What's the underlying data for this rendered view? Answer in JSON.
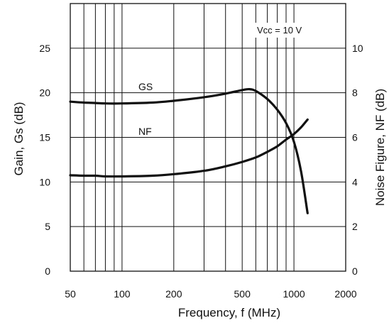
{
  "chart_data": {
    "type": "line",
    "title": "",
    "xlabel": "Frequency, f (MHz)",
    "ylabel": "Gain, Gs (dB)",
    "y2label": "Noise Figure, NF (dB)",
    "xscale": "log",
    "xlim": [
      50,
      2000
    ],
    "ylim": [
      0,
      30
    ],
    "y2lim": [
      0,
      12
    ],
    "grid": true,
    "legend": "none",
    "x_ticks": [
      50,
      100,
      200,
      500,
      1000,
      2000
    ],
    "x_tick_labels": [
      "50",
      "100",
      "200",
      "500",
      "1000",
      "2000"
    ],
    "x_minor_ticks": [
      60,
      70,
      80,
      90,
      300,
      400,
      600,
      700,
      800,
      900
    ],
    "y_ticks": [
      0,
      5,
      10,
      15,
      20,
      25
    ],
    "y_tick_labels": [
      "0",
      "5",
      "10",
      "15",
      "20",
      "25"
    ],
    "y2_ticks": [
      0,
      2,
      4,
      6,
      8,
      10
    ],
    "y2_tick_labels": [
      "0",
      "2",
      "4",
      "6",
      "8",
      "10"
    ],
    "annotation": "Vcc = 10 V",
    "series": [
      {
        "name": "GS",
        "axis": "left",
        "x": [
          50,
          60,
          70,
          80,
          100,
          150,
          200,
          300,
          400,
          500,
          550,
          600,
          700,
          800,
          900,
          1000,
          1100,
          1200
        ],
        "y": [
          19.0,
          18.9,
          18.85,
          18.8,
          18.8,
          18.9,
          19.1,
          19.5,
          19.9,
          20.3,
          20.4,
          20.2,
          19.3,
          18.1,
          16.6,
          14.5,
          11.2,
          6.5
        ]
      },
      {
        "name": "NF",
        "axis": "right",
        "x": [
          50,
          60,
          70,
          80,
          100,
          150,
          200,
          300,
          400,
          500,
          600,
          700,
          800,
          900,
          1000,
          1100,
          1200
        ],
        "y": [
          4.3,
          4.28,
          4.28,
          4.25,
          4.25,
          4.28,
          4.35,
          4.5,
          4.7,
          4.9,
          5.1,
          5.35,
          5.6,
          5.9,
          6.15,
          6.45,
          6.8
        ]
      }
    ]
  }
}
